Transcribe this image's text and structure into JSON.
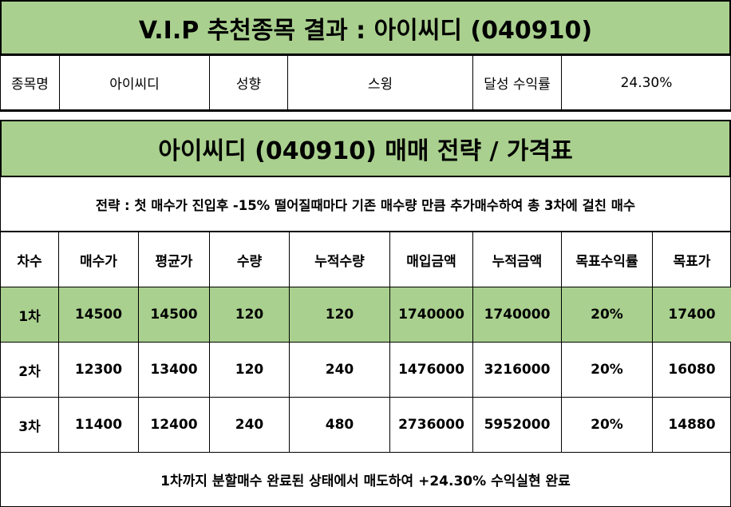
{
  "title": "V.I.P 추천종목 결과 : 아이씨디 (040910)",
  "info": {
    "name_label": "종목명",
    "name_value": "아이씨디",
    "style_label": "성향",
    "style_value": "스윙",
    "return_label": "달성 수익률",
    "return_value": "24.30%"
  },
  "strategy_title": "아이씨디 (040910) 매매 전략 / 가격표",
  "strategy_text": "전략 : 첫 매수가 진입후 -15% 떨어질때마다 기존 매수량 만큼 추가매수하여 총 3차에 걸친 매수",
  "table": {
    "headers": [
      "차수",
      "매수가",
      "평균가",
      "수량",
      "누적수량",
      "매입금액",
      "누적금액",
      "목표수익률",
      "목표가"
    ],
    "rows": [
      [
        "1차",
        "14500",
        "14500",
        "120",
        "120",
        "1740000",
        "1740000",
        "20%",
        "17400"
      ],
      [
        "2차",
        "12300",
        "13400",
        "120",
        "240",
        "1476000",
        "3216000",
        "20%",
        "16080"
      ],
      [
        "3차",
        "11400",
        "12400",
        "240",
        "480",
        "2736000",
        "5952000",
        "20%",
        "14880"
      ]
    ]
  },
  "footer": "1차까지 분할매수 완료된 상태에서 매도하여 +24.30% 수익실현 완료",
  "colors": {
    "highlight": "#a9d08e"
  }
}
